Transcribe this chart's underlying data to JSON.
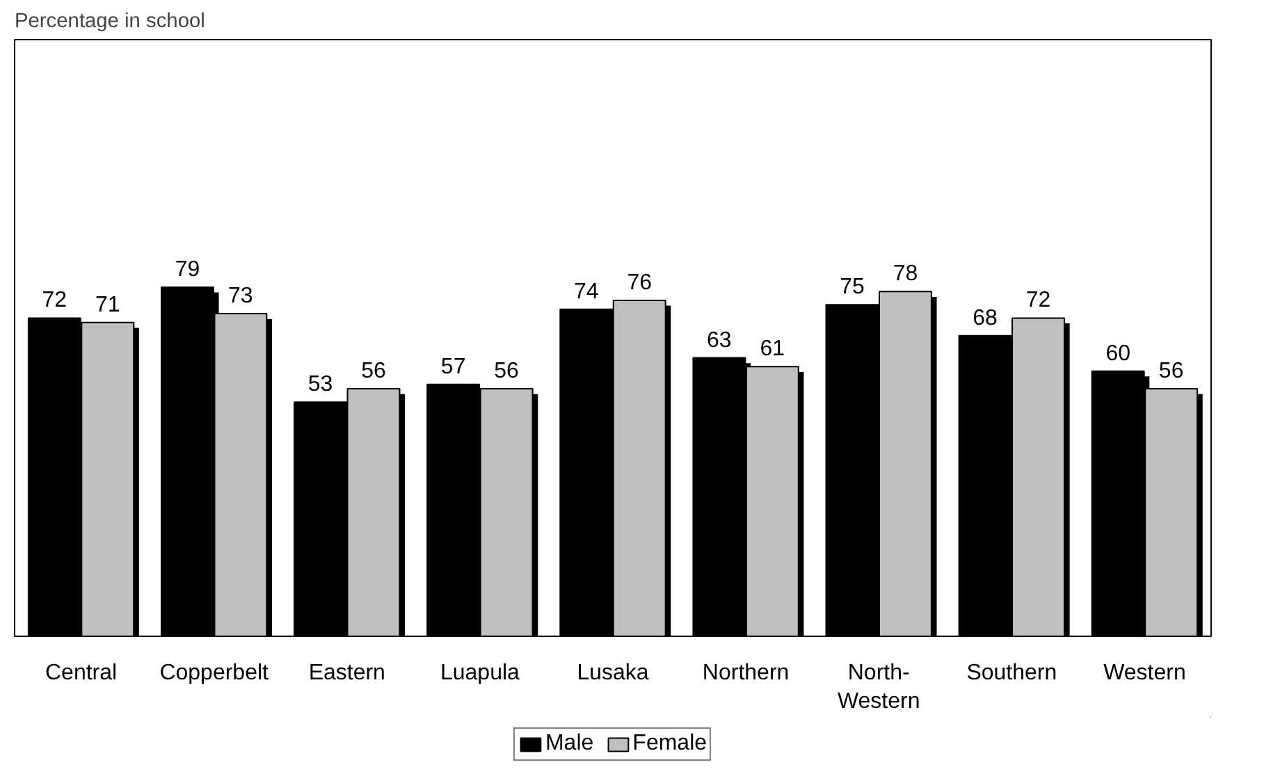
{
  "chart_data": {
    "type": "bar",
    "ylabel": "Percentage in school",
    "categories": [
      "Central",
      "Copperbelt",
      "Eastern",
      "Luapula",
      "Lusaka",
      "Northern",
      "North-Western",
      "Southern",
      "Western"
    ],
    "series": [
      {
        "name": "Male",
        "color": "#000000",
        "values": [
          72,
          79,
          53,
          57,
          74,
          63,
          75,
          68,
          60
        ]
      },
      {
        "name": "Female",
        "color": "#c0c0c0",
        "values": [
          71,
          73,
          56,
          56,
          76,
          61,
          78,
          72,
          56
        ]
      }
    ],
    "ylim": [
      0,
      135
    ],
    "data_labels": true,
    "legend": "bottom",
    "grid": false,
    "tick_labels": "x"
  }
}
